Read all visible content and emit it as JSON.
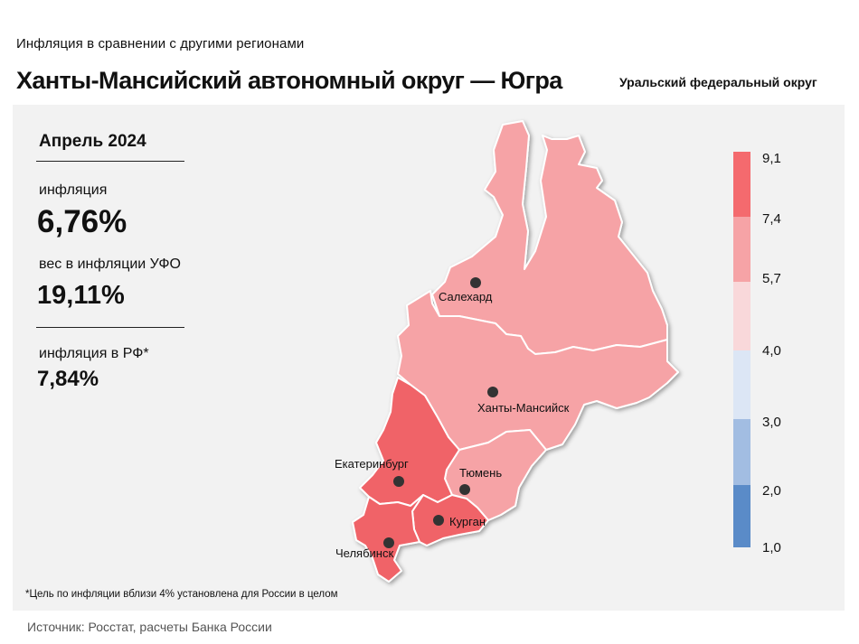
{
  "header": {
    "subtitle": "Инфляция  в сравнении  с другими  регионами",
    "title": "Ханты-Мансийский автономный округ — Югра",
    "district": "Уральский федеральный округ"
  },
  "stats": {
    "period": "Апрель 2024",
    "inflation_label": "инфляция",
    "inflation_value": "6,76%",
    "weight_label": "вес в инфляции  УФО",
    "weight_value": "19,11%",
    "rf_label": "инфляция  в РФ*",
    "rf_value": "7,84%"
  },
  "legend": {
    "ticks": [
      "9,1",
      "7,4",
      "5,7",
      "4,0",
      "3,0",
      "2,0",
      "1,0"
    ],
    "colors": [
      "#f46a6e",
      "#f6a3a6",
      "#f9d8da",
      "#dce6f5",
      "#a2bde2",
      "#5a8bc8"
    ]
  },
  "map": {
    "region_colors": {
      "yamal": "#f6a3a6",
      "khmao": "#f6a3a6",
      "tyumen": "#f6a3a6",
      "sverdlovsk": "#f06368",
      "kurgan": "#f06368",
      "chelyabinsk": "#f06368"
    },
    "cities": {
      "salekhard": "Салехард",
      "khanty_mansiysk": "Ханты-Мансийск",
      "ekaterinburg": "Екатеринбург",
      "tyumen": "Тюмень",
      "kurgan": "Курган",
      "chelyabinsk": "Челябинск"
    }
  },
  "footnote": "*Цель по инфляции вблизи 4% установлена для России в целом",
  "source": "Источник: Росстат, расчеты Банка России"
}
